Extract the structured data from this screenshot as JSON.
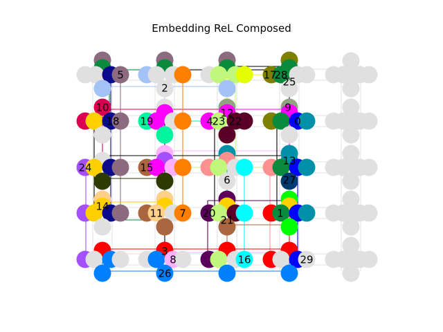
{
  "title": "Embedding ReL Composed",
  "colors": {
    "grey": "#e0e0e0",
    "mauve": "#8c6b80",
    "green": "#0a8a3c",
    "navy": "#0a0a8a",
    "olive": "#7f8000",
    "lightblue": "#a3c2f5",
    "lime": "#bff87a",
    "yellow": "#e6ff00",
    "orange": "#ff8000",
    "crimson": "#dc0050",
    "gold": "#ffd000",
    "teal": "#00f59e",
    "magenta": "#ff00ff",
    "maroon": "#5a0028",
    "sage": "#8fa57f",
    "pink": "#ff9090",
    "cyan": "#00ffff",
    "blue": "#0000ff",
    "darkteal": "#0090a8",
    "navyblue": "#003a70",
    "darkolive": "#2f3a00",
    "purple": "#a550ff",
    "lilac": "#ffb0ff",
    "peach": "#ffd08a",
    "brown": "#aa6640",
    "plum": "#5a005a",
    "red": "#ff0000",
    "brightgreen": "#00ff00",
    "azure": "#0080ff",
    "black": "#000000"
  },
  "nodes": [
    {
      "id": "0",
      "label": "0",
      "color": "darkteal"
    },
    {
      "id": "1",
      "label": "1",
      "color": "brightgreen"
    },
    {
      "id": "2",
      "label": "2",
      "color": "grey"
    },
    {
      "id": "3",
      "label": "3",
      "color": "red"
    },
    {
      "id": "4",
      "label": "4",
      "color": "magenta"
    },
    {
      "id": "5",
      "label": "5",
      "color": "mauve"
    },
    {
      "id": "6",
      "label": "6",
      "color": "darkolive"
    },
    {
      "id": "7",
      "label": "7",
      "color": "orange"
    },
    {
      "id": "8",
      "label": "8",
      "color": "lilac"
    },
    {
      "id": "9",
      "label": "9",
      "color": "magenta"
    },
    {
      "id": "10",
      "label": "10",
      "color": "crimson"
    },
    {
      "id": "11",
      "label": "11",
      "color": "peach"
    },
    {
      "id": "12",
      "label": "12",
      "color": "magenta"
    },
    {
      "id": "13",
      "label": "13",
      "color": "darkteal"
    },
    {
      "id": "14",
      "label": "14",
      "color": "gold"
    },
    {
      "id": "15",
      "label": "15",
      "color": "brown"
    },
    {
      "id": "16",
      "label": "16",
      "color": "cyan"
    },
    {
      "id": "17",
      "label": "17",
      "color": "olive"
    },
    {
      "id": "18",
      "label": "18",
      "color": "navy"
    },
    {
      "id": "19",
      "label": "19",
      "color": "teal"
    },
    {
      "id": "20",
      "label": "20",
      "color": "plum"
    },
    {
      "id": "21",
      "label": "21",
      "color": "brown"
    },
    {
      "id": "22",
      "label": "22",
      "color": "maroon"
    },
    {
      "id": "23",
      "label": "23",
      "color": "lime"
    },
    {
      "id": "24",
      "label": "24",
      "color": "purple"
    },
    {
      "id": "25",
      "label": "25",
      "color": "grey"
    },
    {
      "id": "26",
      "label": "26",
      "color": "azure"
    },
    {
      "id": "27",
      "label": "27",
      "color": "navyblue"
    },
    {
      "id": "28",
      "label": "28",
      "color": "green"
    },
    {
      "id": "29",
      "label": "29",
      "color": "blue"
    }
  ]
}
